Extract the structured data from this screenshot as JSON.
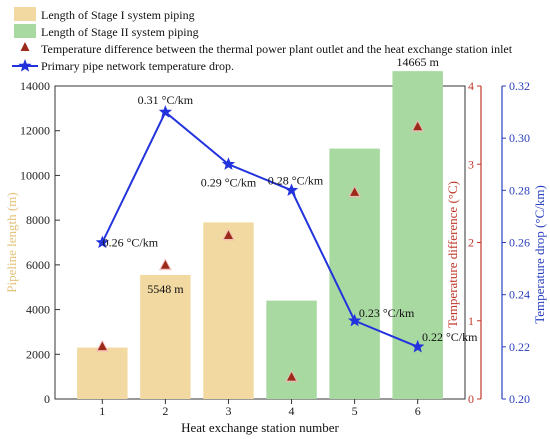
{
  "chart_data": {
    "type": "bar",
    "xlabel": "Heat exchange station number",
    "ylabel_left": "Pipeline length (m)",
    "ylabel_mid": "Temperature difference (°C)",
    "ylabel_right": "Temperature drop (°C/km)",
    "categories": [
      "1",
      "2",
      "3",
      "4",
      "5",
      "6"
    ],
    "ylim_left": [
      0,
      14000
    ],
    "ylim_mid": [
      0,
      4
    ],
    "ylim_right": [
      0.2,
      0.32
    ],
    "yticks_left": [
      "0",
      "2000",
      "4000",
      "6000",
      "8000",
      "10000",
      "12000",
      "14000"
    ],
    "yticks_mid": [
      "0",
      "1",
      "2",
      "3",
      "4"
    ],
    "yticks_right": [
      "0.20",
      "0.22",
      "0.24",
      "0.26",
      "0.28",
      "0.30",
      "0.32"
    ],
    "colors": {
      "stage1": "#f2d9a2",
      "stage2": "#a7d9a1",
      "triangle": "#9b2a1a",
      "triangle_halo": "#f4b8b8",
      "line": "#2233dd",
      "left_axis": "#e3c27a",
      "mid_axis": "#c0392b",
      "right_axis": "#2a3fbf"
    },
    "series": [
      {
        "name": "Length of Stage I system piping",
        "kind": "bar",
        "axis": "left",
        "values": [
          2300,
          5548,
          7900,
          null,
          null,
          null
        ]
      },
      {
        "name": "Length of Stage II system piping",
        "kind": "bar",
        "axis": "left",
        "values": [
          null,
          null,
          null,
          4400,
          11200,
          14665
        ]
      },
      {
        "name": "Temperature difference between the thermal power plant outlet and the heat exchange station inlet",
        "kind": "scatter",
        "axis": "mid",
        "values": [
          0.67,
          1.71,
          2.09,
          0.28,
          2.64,
          3.48
        ]
      },
      {
        "name": "Primary pipe network temperature drop.",
        "kind": "line",
        "axis": "right",
        "values": [
          0.26,
          0.31,
          0.29,
          0.28,
          0.23,
          0.22
        ]
      }
    ],
    "bar_labels": [
      {
        "index": 1,
        "text": "5548 m"
      },
      {
        "index": 5,
        "text": "14665 m"
      }
    ],
    "line_labels": [
      "0.26 °C/km",
      "0.31 °C/km",
      "0.29 °C/km",
      "0.28 °C/km",
      "0.23 °C/km",
      "0.22 °C/km"
    ],
    "legend": {
      "placement": "top-left",
      "items": [
        "Length of Stage I system piping",
        "Length of Stage II system piping",
        "Temperature difference between the thermal power plant outlet and the heat exchange station inlet",
        "Primary pipe network temperature drop."
      ]
    }
  }
}
